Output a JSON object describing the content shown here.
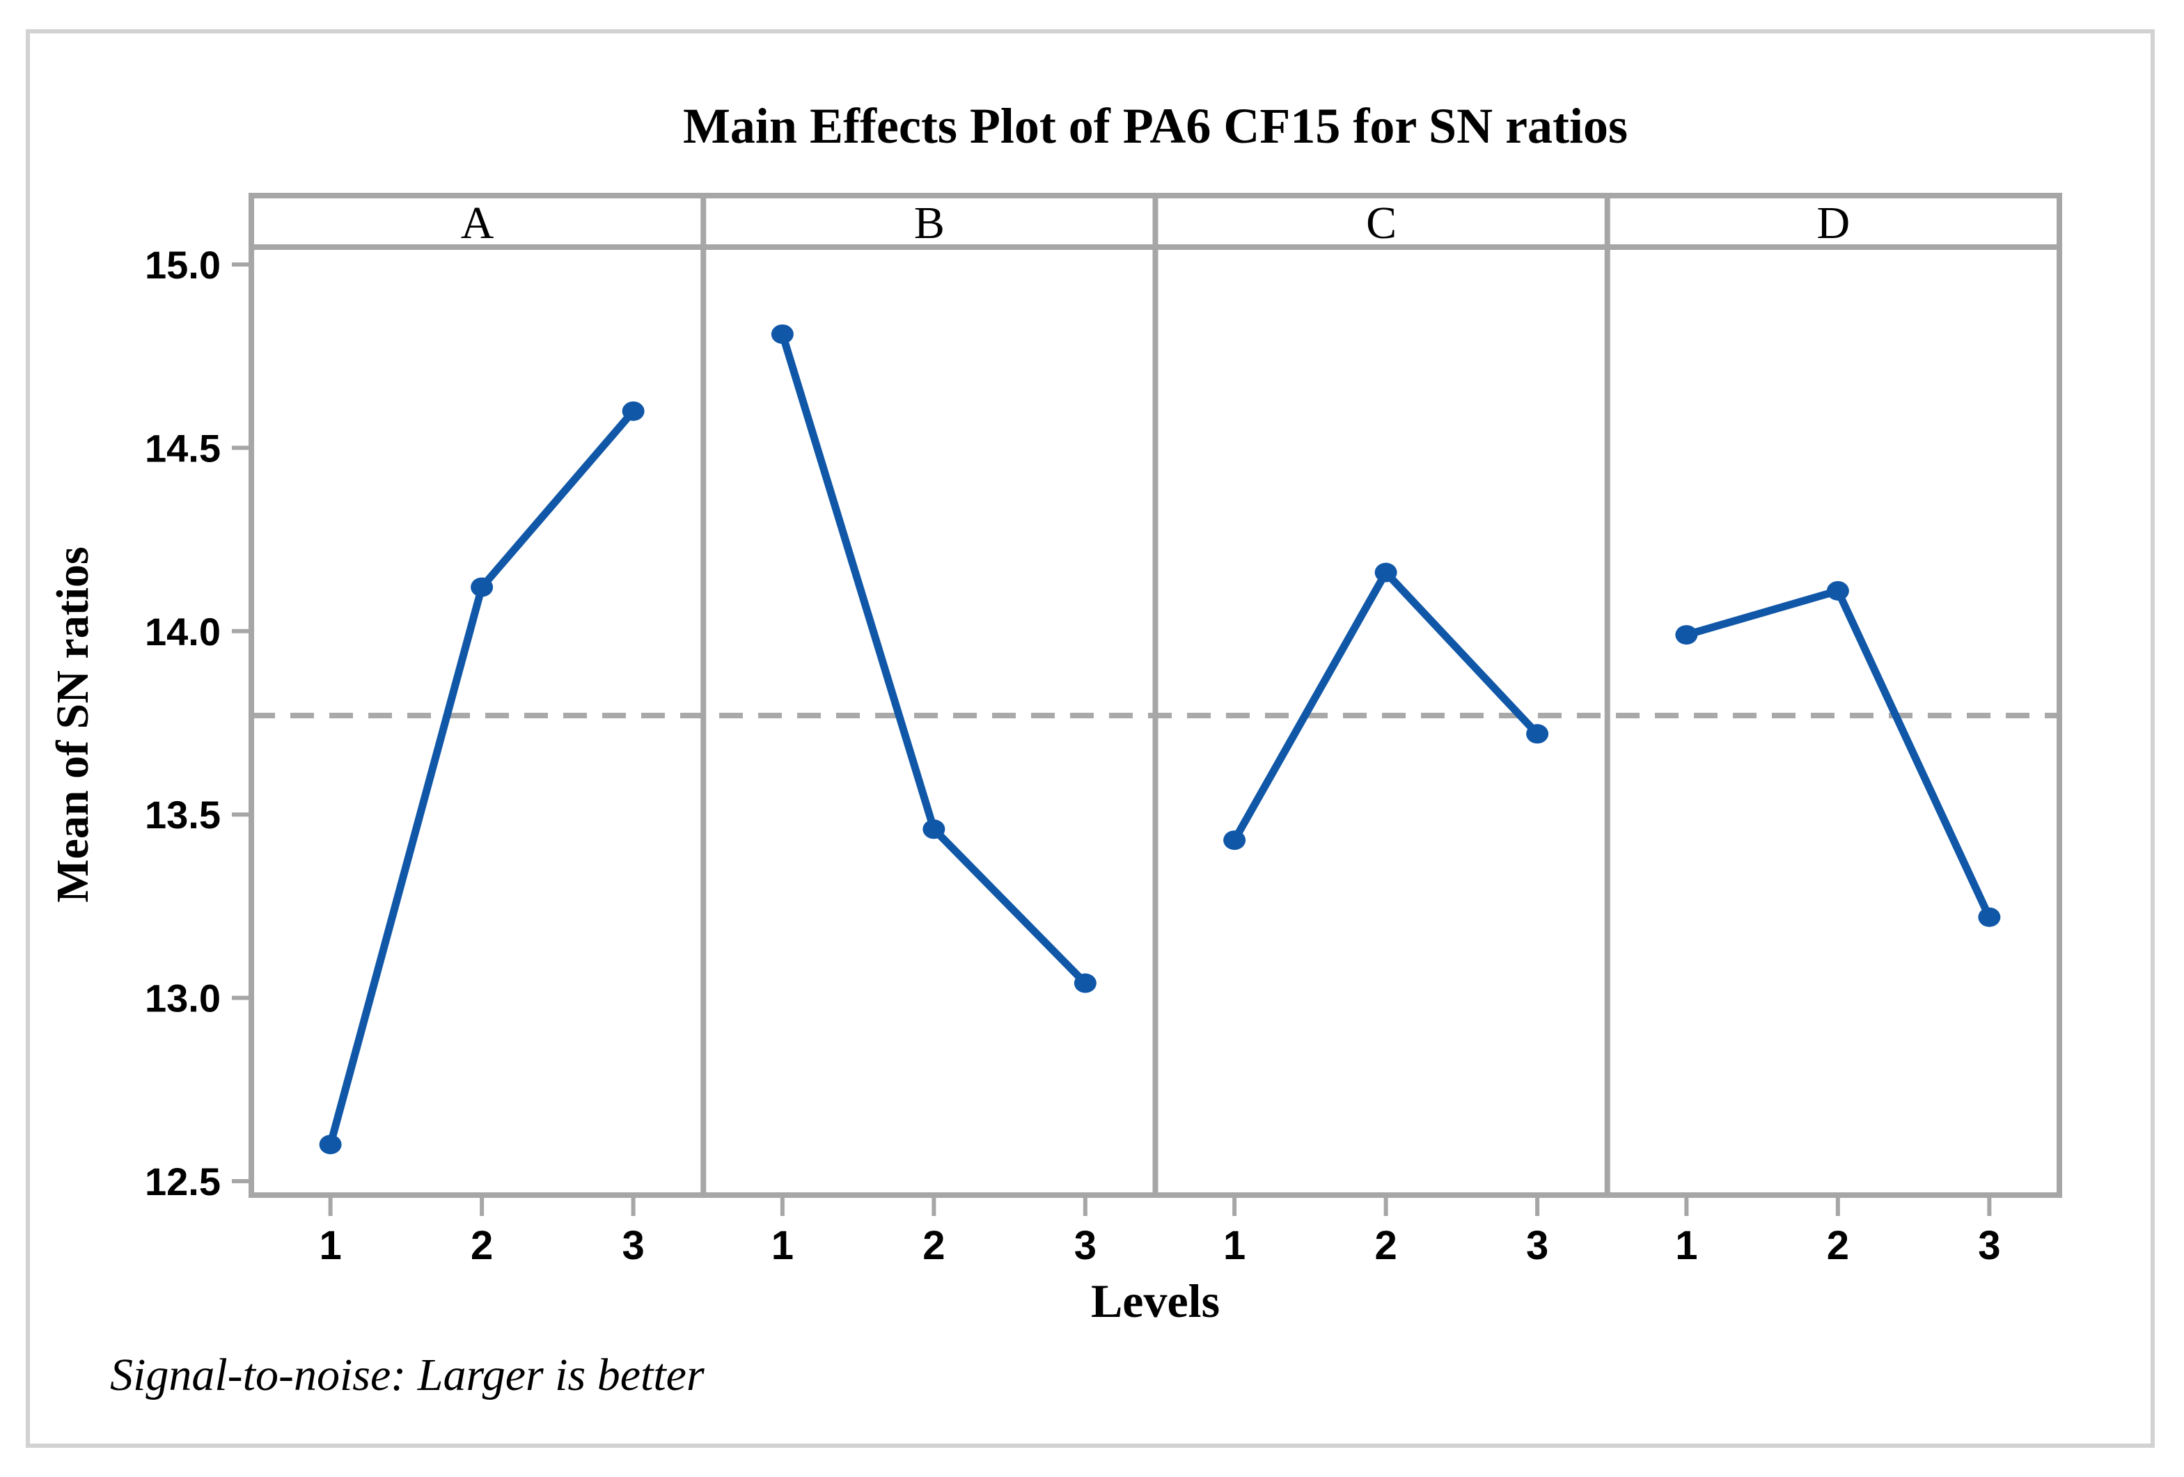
{
  "title": "Main Effects Plot of PA6 CF15 for SN ratios",
  "ylabel": "Mean of SN ratios",
  "xlabel": "Levels",
  "footnote": "Signal-to-noise: Larger is better",
  "chart_data": {
    "type": "line",
    "subplot_layout": "4 panels sharing y-axis",
    "panels": [
      "A",
      "B",
      "C",
      "D"
    ],
    "x": [
      "1",
      "2",
      "3"
    ],
    "series": [
      {
        "name": "A",
        "values": [
          12.6,
          14.12,
          14.6
        ]
      },
      {
        "name": "B",
        "values": [
          14.81,
          13.46,
          13.04
        ]
      },
      {
        "name": "C",
        "values": [
          13.43,
          14.16,
          13.72
        ]
      },
      {
        "name": "D",
        "values": [
          13.99,
          14.11,
          13.22
        ]
      }
    ],
    "yticks": [
      "15.0",
      "14.5",
      "14.0",
      "13.5",
      "13.0",
      "12.5"
    ],
    "ylim": [
      12.5,
      15.0
    ],
    "mean_line": 13.77,
    "mean_line_style": "dashed",
    "grid": false,
    "legend": "none",
    "point_color": "#1057a8",
    "axis_color": "#a6a6a6",
    "dash_color": "#a9a9a9"
  }
}
